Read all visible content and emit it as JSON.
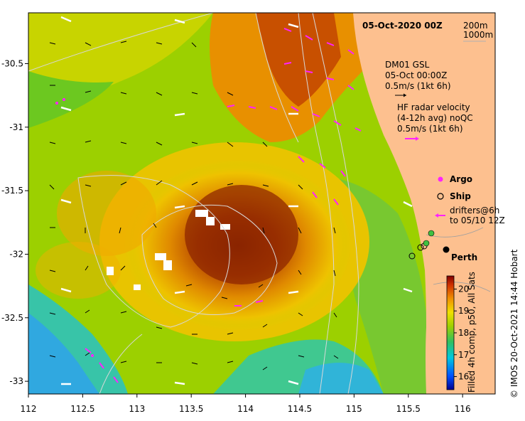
{
  "title": "05-Oct-2020 00Z",
  "depth_legend": [
    "200m",
    "1000m"
  ],
  "glider": {
    "name": "DM01 GSL",
    "time": "05-Oct 00:00Z",
    "scale": "0.5m/s (1kt 6h)"
  },
  "hf_radar": {
    "line1": "HF radar velocity",
    "line2": "(4-12h avg) noQC",
    "scale": "0.5m/s (1kt 6h)"
  },
  "markers": {
    "argo": "Argo",
    "ship": "Ship",
    "drifters_1": "drifters@6h",
    "drifters_2": "to 05/10 12Z"
  },
  "place": "Perth",
  "colorbar": {
    "label": "Filled 4h comp, p50, All Sats",
    "ticks": [
      "20",
      "19",
      "18",
      "17",
      "16"
    ],
    "min": 15.4,
    "max": 20.6
  },
  "credit": "© IMOS 20-Oct-2021 14:44 Hobart",
  "axes": {
    "x_ticks": [
      "112",
      "112.5",
      "113",
      "113.5",
      "114",
      "114.5",
      "115",
      "115.5",
      "116"
    ],
    "y_ticks": [
      "-30.5",
      "-31",
      "-31.5",
      "-32",
      "-32.5",
      "-33"
    ],
    "xlim": [
      112,
      116.3
    ],
    "ylim": [
      -33.1,
      -30.1
    ]
  },
  "colors": {
    "argo": "#ff22ff",
    "land": "#fdc08f",
    "contour": "#d8d8d8"
  }
}
